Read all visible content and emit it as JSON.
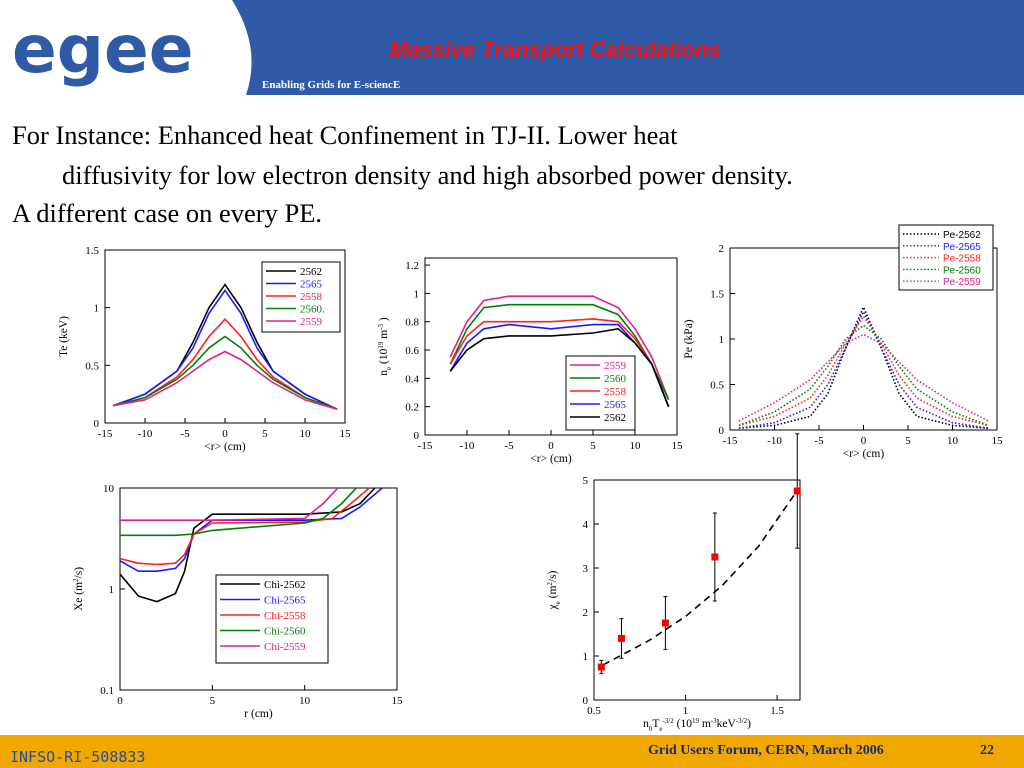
{
  "header": {
    "logo": "egee",
    "title": "Massive Transport Calculations",
    "subtitle": "Enabling Grids for E-sciencE"
  },
  "body": [
    "For Instance: Enhanced heat Confinement in TJ-II. Lower heat",
    "diffusivity for low electron density and high absorbed power density.",
    "A different case on every PE."
  ],
  "chart_data": [
    {
      "type": "line",
      "ylabel": [
        {
          "t": "Te (keV)"
        }
      ],
      "xlabel": [
        {
          "t": "<r> (cm)"
        }
      ],
      "xlim": [
        -15,
        15
      ],
      "xticks": [
        -15,
        -10,
        -5,
        0,
        5,
        10,
        15
      ],
      "ylim": [
        0,
        1.5
      ],
      "yticks": [
        0,
        0.5,
        1,
        1.5
      ],
      "x": [
        -14,
        -10,
        -6,
        -4,
        -2,
        0,
        2,
        4,
        6,
        10,
        14
      ],
      "series": [
        {
          "name": "2562",
          "color": "#000000",
          "values": [
            0.15,
            0.25,
            0.45,
            0.7,
            1.0,
            1.2,
            1.0,
            0.7,
            0.45,
            0.25,
            0.12
          ]
        },
        {
          "name": "2565",
          "color": "#1a1aff",
          "values": [
            0.15,
            0.25,
            0.45,
            0.65,
            0.95,
            1.15,
            0.95,
            0.65,
            0.45,
            0.25,
            0.12
          ]
        },
        {
          "name": "2558",
          "color": "#ff2020",
          "values": [
            0.15,
            0.22,
            0.4,
            0.55,
            0.75,
            0.9,
            0.75,
            0.55,
            0.4,
            0.22,
            0.12
          ]
        },
        {
          "name": "2560.",
          "color": "#008000",
          "values": [
            0.15,
            0.22,
            0.38,
            0.5,
            0.65,
            0.75,
            0.65,
            0.5,
            0.38,
            0.22,
            0.12
          ]
        },
        {
          "name": "2559",
          "color": "#e0208f",
          "values": [
            0.15,
            0.2,
            0.35,
            0.45,
            0.55,
            0.62,
            0.55,
            0.45,
            0.35,
            0.2,
            0.12
          ]
        }
      ]
    },
    {
      "type": "line",
      "ylabel": [
        {
          "t": "n"
        },
        {
          "t": "e",
          "sub": true
        },
        {
          "t": " (10"
        },
        {
          "t": "19",
          "sup": true
        },
        {
          "t": " m"
        },
        {
          "t": "-3",
          "sup": true
        },
        {
          "t": " )"
        }
      ],
      "xlabel": [
        {
          "t": "<r> (cm)"
        }
      ],
      "xlim": [
        -15,
        15
      ],
      "xticks": [
        -15,
        -10,
        -5,
        0,
        5,
        10,
        15
      ],
      "ylim": [
        0,
        1.25
      ],
      "yticks": [
        0,
        0.2,
        0.4,
        0.6,
        0.8,
        1,
        1.2
      ],
      "x": [
        -12,
        -10,
        -8,
        -5,
        0,
        5,
        8,
        10,
        12,
        14
      ],
      "series": [
        {
          "name": "2559",
          "color": "#e0208f",
          "values": [
            0.55,
            0.8,
            0.95,
            0.98,
            0.98,
            0.98,
            0.9,
            0.75,
            0.55,
            0.25
          ]
        },
        {
          "name": "2560",
          "color": "#008000",
          "values": [
            0.5,
            0.75,
            0.9,
            0.92,
            0.92,
            0.92,
            0.85,
            0.7,
            0.5,
            0.25
          ]
        },
        {
          "name": "2558",
          "color": "#ff2020",
          "values": [
            0.5,
            0.7,
            0.8,
            0.8,
            0.8,
            0.82,
            0.8,
            0.68,
            0.5,
            0.2
          ]
        },
        {
          "name": "2565",
          "color": "#1a1aff",
          "values": [
            0.45,
            0.65,
            0.75,
            0.78,
            0.75,
            0.78,
            0.78,
            0.65,
            0.5,
            0.2
          ]
        },
        {
          "name": "2562",
          "color": "#000000",
          "values": [
            0.45,
            0.6,
            0.68,
            0.7,
            0.7,
            0.72,
            0.75,
            0.65,
            0.5,
            0.2
          ]
        }
      ]
    },
    {
      "type": "line",
      "line_style": "dotted",
      "ylabel": [
        {
          "t": "Pe (kPa)"
        }
      ],
      "xlabel": [
        {
          "t": "<r> (cm)"
        }
      ],
      "xlim": [
        -15,
        15
      ],
      "xticks": [
        -15,
        -10,
        -5,
        0,
        5,
        10,
        15
      ],
      "ylim": [
        0,
        2
      ],
      "yticks": [
        0,
        0.5,
        1,
        1.5,
        2
      ],
      "x": [
        -14,
        -10,
        -6,
        -4,
        -2,
        0,
        2,
        4,
        6,
        10,
        14
      ],
      "series": [
        {
          "name": "Pe-2562",
          "color": "#000000",
          "values": [
            0.02,
            0.05,
            0.15,
            0.4,
            0.9,
            1.35,
            0.9,
            0.4,
            0.15,
            0.05,
            0.02
          ]
        },
        {
          "name": "Pe-2565",
          "color": "#1a1aff",
          "values": [
            0.02,
            0.08,
            0.25,
            0.5,
            0.9,
            1.3,
            0.9,
            0.5,
            0.25,
            0.08,
            0.02
          ]
        },
        {
          "name": "Pe-2558",
          "color": "#ff2020",
          "values": [
            0.05,
            0.15,
            0.35,
            0.6,
            0.95,
            1.25,
            0.95,
            0.6,
            0.35,
            0.15,
            0.05
          ]
        },
        {
          "name": "Pe-2560",
          "color": "#008000",
          "values": [
            0.05,
            0.2,
            0.45,
            0.7,
            1.0,
            1.15,
            1.0,
            0.7,
            0.45,
            0.2,
            0.05
          ]
        },
        {
          "name": "Pe-2559",
          "color": "#e0208f",
          "values": [
            0.1,
            0.3,
            0.55,
            0.75,
            0.95,
            1.05,
            0.95,
            0.75,
            0.55,
            0.3,
            0.1
          ]
        }
      ]
    },
    {
      "type": "line",
      "log_y": true,
      "ylabel": [
        {
          "t": "Xe (m"
        },
        {
          "t": "2",
          "sup": true
        },
        {
          "t": "/s)"
        }
      ],
      "xlabel": [
        {
          "t": "r (cm)"
        }
      ],
      "xlim": [
        0,
        15
      ],
      "xticks": [
        0,
        5,
        10,
        15
      ],
      "ylim": [
        0.1,
        10
      ],
      "yticks": [
        0.1,
        1,
        10
      ],
      "series": [
        {
          "name": "Chi-2562",
          "color": "#000000",
          "x": [
            0,
            1,
            2,
            3,
            3.5,
            4,
            5,
            10,
            12,
            13,
            13.8
          ],
          "values": [
            1.4,
            0.85,
            0.75,
            0.9,
            1.5,
            4,
            5.5,
            5.5,
            5.8,
            7,
            10
          ]
        },
        {
          "name": "Chi-2565",
          "color": "#1a1aff",
          "x": [
            0,
            1,
            2,
            3,
            3.5,
            4,
            5,
            10,
            12,
            13,
            14.2
          ],
          "values": [
            1.9,
            1.5,
            1.5,
            1.6,
            2,
            3.5,
            4.8,
            4.8,
            5,
            6.5,
            10
          ]
        },
        {
          "name": "Chi-2558",
          "color": "#ff2020",
          "x": [
            0,
            1,
            2,
            3,
            3.5,
            4,
            5,
            10,
            11.5,
            12.5,
            13.5
          ],
          "values": [
            2,
            1.8,
            1.75,
            1.8,
            2.2,
            3.5,
            4.5,
            4.6,
            5,
            7,
            10
          ]
        },
        {
          "name": "Chi-2560",
          "color": "#008000",
          "x": [
            0,
            3,
            4,
            5,
            10,
            11,
            12,
            12.8
          ],
          "values": [
            3.4,
            3.4,
            3.5,
            3.8,
            4.5,
            5,
            7,
            10
          ]
        },
        {
          "name": "Chi-2559",
          "color": "#e0208f",
          "x": [
            0,
            3,
            5,
            10,
            11,
            11.8
          ],
          "values": [
            4.8,
            4.8,
            4.8,
            5,
            7,
            10
          ]
        }
      ]
    },
    {
      "type": "scatter",
      "ylabel": [
        {
          "t": "χ"
        },
        {
          "t": "e",
          "sub": true
        },
        {
          "t": " (m"
        },
        {
          "t": "2",
          "sup": true
        },
        {
          "t": "/s)"
        }
      ],
      "xlabel": [
        {
          "t": "n"
        },
        {
          "t": "0",
          "sub": true
        },
        {
          "t": "T"
        },
        {
          "t": "e",
          "sub": true
        },
        {
          "t": "-3/2",
          "sup": true
        },
        {
          "t": " (10"
        },
        {
          "t": "19",
          "sup": true
        },
        {
          "t": " m"
        },
        {
          "t": "-3",
          "sup": true
        },
        {
          "t": "keV"
        },
        {
          "t": "-3/2",
          "sup": true
        },
        {
          "t": ")"
        }
      ],
      "xlim": [
        0.5,
        1.625
      ],
      "xticks": [
        0.5,
        1,
        1.5
      ],
      "ylim": [
        0,
        5
      ],
      "yticks": [
        0,
        1,
        2,
        3,
        4,
        5
      ],
      "x": [
        0.54,
        0.65,
        0.89,
        1.16,
        1.61
      ],
      "values": [
        0.75,
        1.4,
        1.75,
        3.25,
        4.75
      ],
      "errors": [
        0.15,
        0.45,
        0.6,
        1.0,
        1.3
      ],
      "color": "#ff0000",
      "fit": {
        "color": "#000000",
        "x": [
          0.55,
          0.8,
          1.0,
          1.2,
          1.4,
          1.6
        ],
        "values": [
          0.8,
          1.35,
          1.9,
          2.6,
          3.5,
          4.7
        ]
      }
    }
  ],
  "footer": {
    "id": "INFSO-RI-508833",
    "event": "Grid Users Forum, CERN, March 2006",
    "page": "22"
  }
}
